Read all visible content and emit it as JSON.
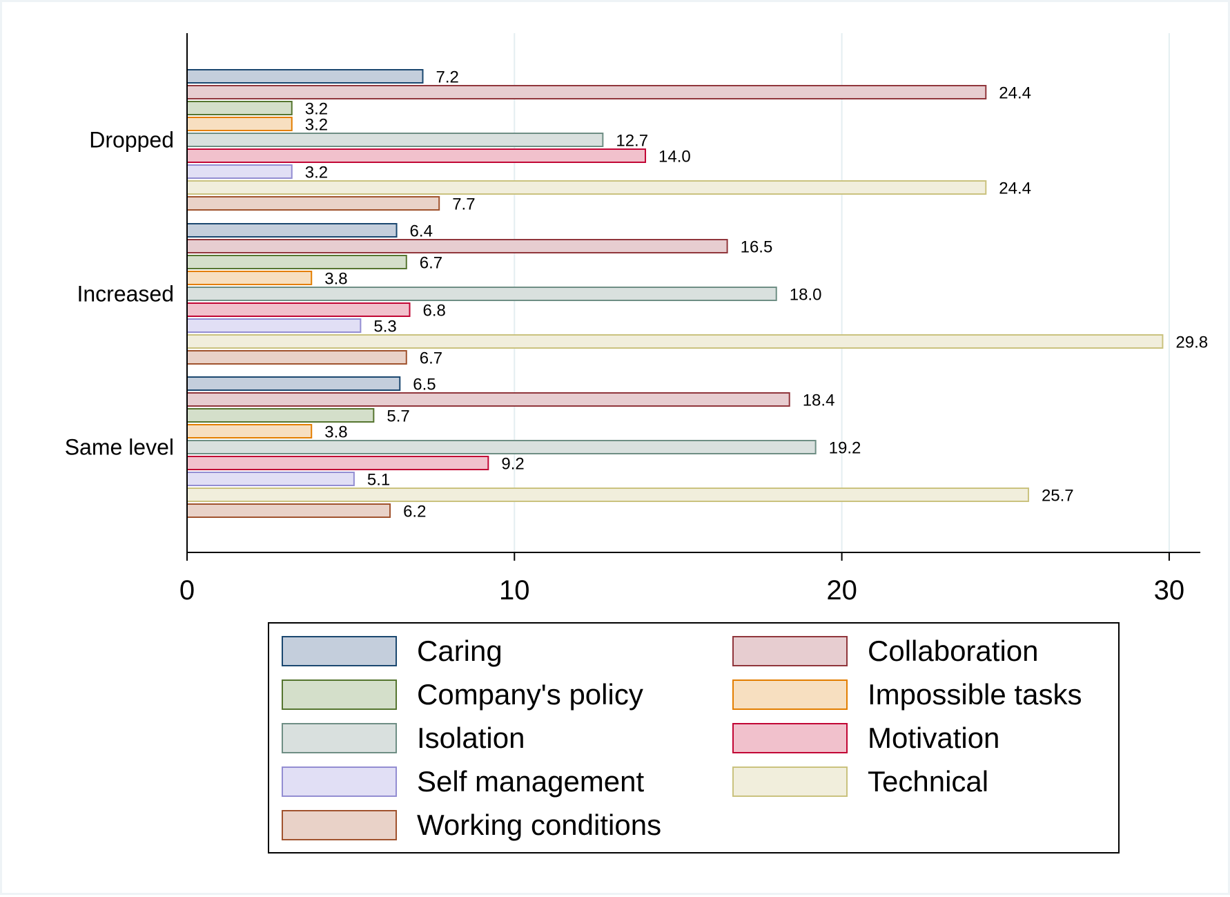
{
  "chart_data": {
    "type": "bar",
    "orientation": "horizontal",
    "title": "",
    "xlabel": "",
    "ylabel": "",
    "xlim": [
      0,
      31
    ],
    "x_ticks": [
      "0",
      "10",
      "20",
      "30"
    ],
    "x_tick_values": [
      0,
      10,
      20,
      30
    ],
    "grid": true,
    "legend_position": "bottom",
    "categories": [
      "Dropped",
      "Increased",
      "Same level"
    ],
    "series": [
      {
        "name": "Caring",
        "fill": "#c4cedc",
        "stroke": "#1a476f",
        "values": [
          7.2,
          6.4,
          6.5
        ],
        "labels": [
          "7.2",
          "6.4",
          "6.5"
        ]
      },
      {
        "name": "Collaboration",
        "fill": "#e7cdd0",
        "stroke": "#90353b",
        "values": [
          24.4,
          16.5,
          18.4
        ],
        "labels": [
          "24.4",
          "16.5",
          "18.4"
        ]
      },
      {
        "name": "Company's policy",
        "fill": "#d4dfca",
        "stroke": "#55752f",
        "values": [
          3.2,
          6.7,
          5.7
        ],
        "labels": [
          "3.2",
          "6.7",
          "5.7"
        ]
      },
      {
        "name": "Impossible tasks",
        "fill": "#f7dfc0",
        "stroke": "#e37e00",
        "values": [
          3.2,
          3.8,
          3.8
        ],
        "labels": [
          "3.2",
          "3.8",
          "3.8"
        ]
      },
      {
        "name": "Isolation",
        "fill": "#d9e0de",
        "stroke": "#6e8e84",
        "values": [
          12.7,
          18.0,
          19.2
        ],
        "labels": [
          "12.7",
          "18.0",
          "19.2"
        ]
      },
      {
        "name": "Motivation",
        "fill": "#f1c1cc",
        "stroke": "#c10534",
        "values": [
          14.0,
          6.8,
          9.2
        ],
        "labels": [
          "14.0",
          "6.8",
          "9.2"
        ]
      },
      {
        "name": "Self management",
        "fill": "#e1dff5",
        "stroke": "#938dd2",
        "values": [
          3.2,
          5.3,
          5.1
        ],
        "labels": [
          "3.2",
          "5.3",
          "5.1"
        ]
      },
      {
        "name": "Technical",
        "fill": "#f1eedc",
        "stroke": "#cac27e",
        "values": [
          24.4,
          29.8,
          25.7
        ],
        "labels": [
          "24.4",
          "29.8",
          "25.7"
        ]
      },
      {
        "name": "Working conditions",
        "fill": "#e9d2c8",
        "stroke": "#a0522d",
        "values": [
          7.7,
          6.7,
          6.2
        ],
        "labels": [
          "7.7",
          "6.7",
          "6.2"
        ]
      }
    ]
  }
}
